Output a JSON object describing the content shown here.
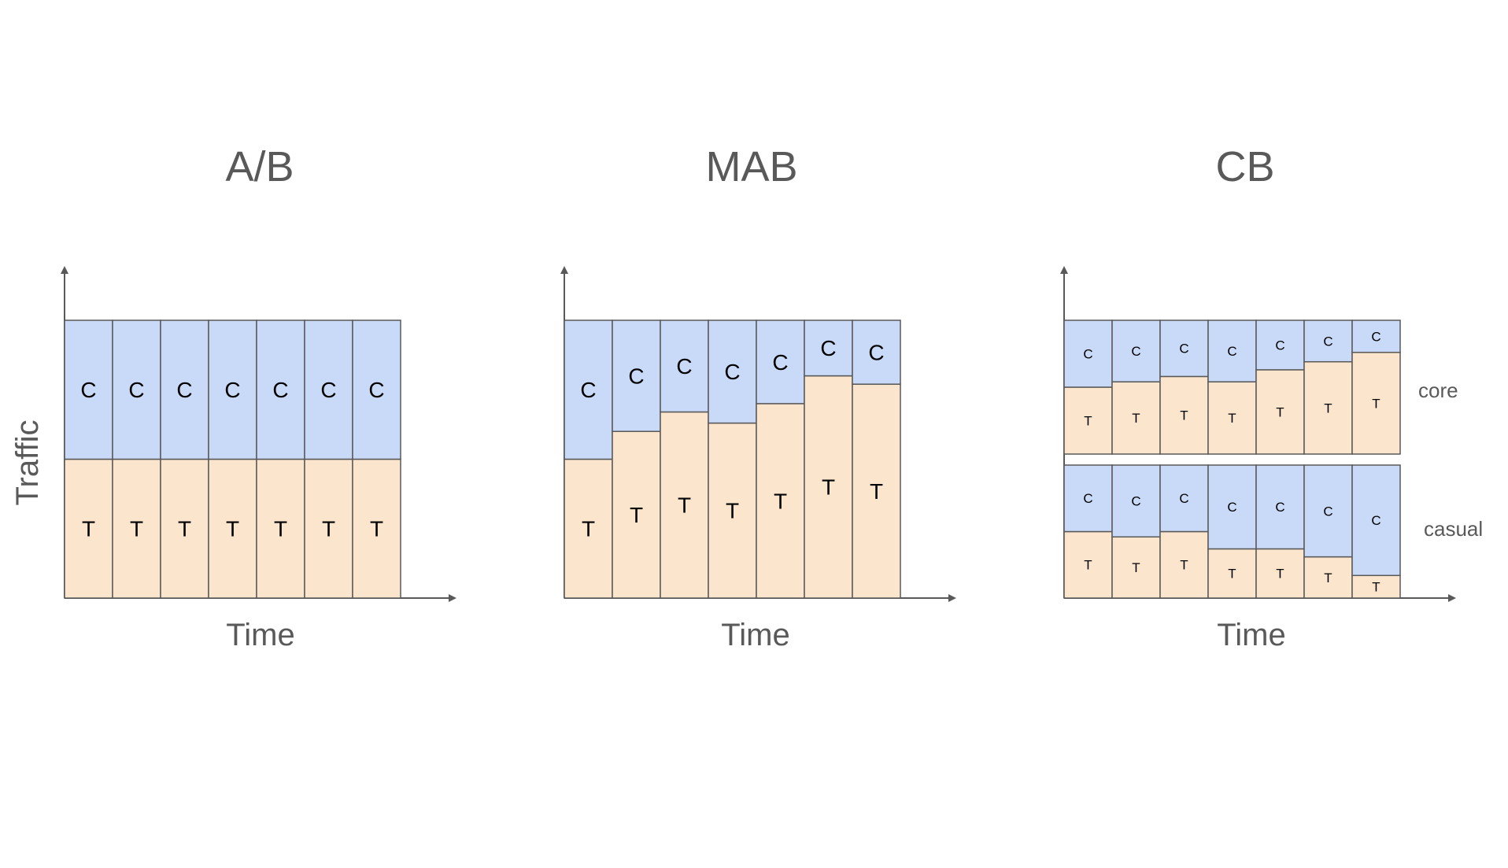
{
  "colors": {
    "control": "#c9daf8",
    "treatment": "#fce5cd",
    "stroke": "#595959",
    "text": "#595959"
  },
  "y_axis_label": "Traffic",
  "chart_data": [
    {
      "type": "bar",
      "stacked": true,
      "title": "A/B",
      "xlabel": "Time",
      "ylabel": "Traffic",
      "categories": [
        "1",
        "2",
        "3",
        "4",
        "5",
        "6",
        "7"
      ],
      "ylim": [
        0,
        1
      ],
      "series": [
        {
          "name": "T",
          "values": [
            0.5,
            0.5,
            0.5,
            0.5,
            0.5,
            0.5,
            0.5
          ]
        },
        {
          "name": "C",
          "values": [
            0.5,
            0.5,
            0.5,
            0.5,
            0.5,
            0.5,
            0.5
          ]
        }
      ]
    },
    {
      "type": "bar",
      "stacked": true,
      "title": "MAB",
      "xlabel": "Time",
      "categories": [
        "1",
        "2",
        "3",
        "4",
        "5",
        "6",
        "7"
      ],
      "ylim": [
        0,
        1
      ],
      "series": [
        {
          "name": "T",
          "values": [
            0.5,
            0.6,
            0.67,
            0.63,
            0.7,
            0.8,
            0.77
          ]
        },
        {
          "name": "C",
          "values": [
            0.5,
            0.4,
            0.33,
            0.37,
            0.3,
            0.2,
            0.23
          ]
        }
      ]
    },
    {
      "type": "bar",
      "stacked": true,
      "title": "CB",
      "xlabel": "Time",
      "categories": [
        "1",
        "2",
        "3",
        "4",
        "5",
        "6",
        "7"
      ],
      "groups": [
        {
          "name": "core",
          "ylim": [
            0,
            1
          ],
          "series": [
            {
              "name": "T",
              "values": [
                0.5,
                0.54,
                0.58,
                0.54,
                0.63,
                0.69,
                0.76
              ]
            },
            {
              "name": "C",
              "values": [
                0.5,
                0.46,
                0.42,
                0.46,
                0.37,
                0.31,
                0.24
              ]
            }
          ]
        },
        {
          "name": "casual",
          "ylim": [
            0,
            1
          ],
          "series": [
            {
              "name": "T",
              "values": [
                0.5,
                0.46,
                0.5,
                0.37,
                0.37,
                0.31,
                0.17
              ]
            },
            {
              "name": "C",
              "values": [
                0.5,
                0.54,
                0.5,
                0.63,
                0.63,
                0.69,
                0.83
              ]
            }
          ]
        }
      ]
    }
  ]
}
